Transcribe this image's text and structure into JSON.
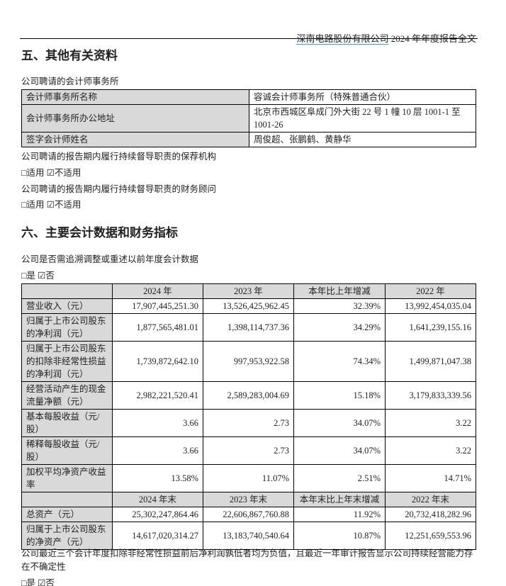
{
  "header": {
    "company": "深南电路股份有限公司",
    "suffix": "2024 年年度报告全文"
  },
  "section5": {
    "title": "五、其他有关资料",
    "auditor_intro": "公司聘请的会计师事务所",
    "auditor_table": [
      [
        "会计师事务所名称",
        "容诚会计师事务所（特殊普通合伙）"
      ],
      [
        "会计师事务所办公地址",
        "北京市西城区阜成门外大街 22 号 1 幢 10 层 1001-1 至 1001-26"
      ],
      [
        "签字会计师姓名",
        "周俊超、张鹏鹤、黄静华"
      ]
    ],
    "sponsor_label": "公司聘请的报告期内履行持续督导职责的保荐机构",
    "sponsor_choice": "□适用 ☑不适用",
    "advisor_label": "公司聘请的报告期内履行持续督导职责的财务顾问",
    "advisor_choice": "□适用 ☑不适用"
  },
  "section6": {
    "title": "六、主要会计数据和财务指标",
    "restate_label": "公司是否需追溯调整或重述以前年度会计数据",
    "restate_choice": "□是 ☑否",
    "header1": [
      "",
      "2024 年",
      "2023 年",
      "本年比上年增减",
      "2022 年"
    ],
    "rows1": [
      [
        "营业收入（元）",
        "17,907,445,251.30",
        "13,526,425,962.45",
        "32.39%",
        "13,992,454,035.04"
      ],
      [
        "归属于上市公司股东的净利润（元）",
        "1,877,565,481.01",
        "1,398,114,737.36",
        "34.29%",
        "1,641,239,155.16"
      ],
      [
        "归属于上市公司股东的扣除非经常性损益的净利润（元）",
        "1,739,872,642.10",
        "997,953,922.58",
        "74.34%",
        "1,499,871,047.38"
      ],
      [
        "经营活动产生的现金流量净额（元）",
        "2,982,221,520.41",
        "2,589,283,004.69",
        "15.18%",
        "3,179,833,339.56"
      ],
      [
        "基本每股收益（元/股）",
        "3.66",
        "2.73",
        "34.07%",
        "3.22"
      ],
      [
        "稀释每股收益（元/股）",
        "3.66",
        "2.73",
        "34.07%",
        "3.22"
      ],
      [
        "加权平均净资产收益率",
        "13.58%",
        "11.07%",
        "2.51%",
        "14.71%"
      ]
    ],
    "header2": [
      "",
      "2024 年末",
      "2023 年末",
      "本年末比上年末增减",
      "2022 年末"
    ],
    "rows2": [
      [
        "总资产（元）",
        "25,302,247,864.46",
        "22,606,867,760.88",
        "11.92%",
        "20,732,418,282.96"
      ],
      [
        "归属于上市公司股东的净资产（元）",
        "14,617,020,314.27",
        "13,183,740,540.64",
        "10.87%",
        "12,251,659,553.96"
      ]
    ],
    "going_concern_label": "公司最近三个会计年度扣除非经常性损益前后净利润孰低者均为负值，且最近一年审计报告显示公司持续经营能力存在不确定性",
    "going_concern_choice": "□是 ☑否"
  }
}
